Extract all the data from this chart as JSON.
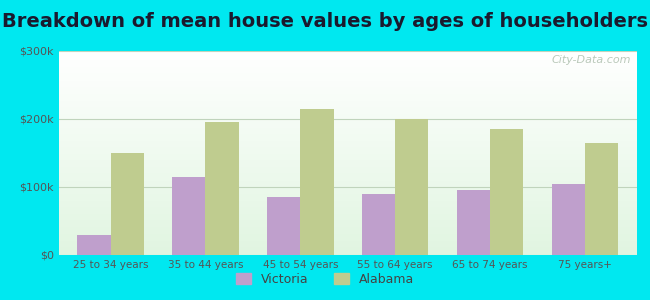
{
  "title": "Breakdown of mean house values by ages of householders",
  "categories": [
    "25 to 34 years",
    "35 to 44 years",
    "45 to 54 years",
    "55 to 64 years",
    "65 to 74 years",
    "75 years+"
  ],
  "victoria_values": [
    30000,
    115000,
    85000,
    90000,
    95000,
    105000
  ],
  "alabama_values": [
    150000,
    195000,
    215000,
    200000,
    185000,
    165000
  ],
  "victoria_color": "#bf9fcc",
  "alabama_color": "#bfcc8f",
  "ylim": [
    0,
    300000
  ],
  "yticks": [
    0,
    100000,
    200000,
    300000
  ],
  "ytick_labels": [
    "$0",
    "$100k",
    "$200k",
    "$300k"
  ],
  "background_outer": "#00e8f0",
  "legend_victoria": "Victoria",
  "legend_alabama": "Alabama",
  "title_fontsize": 14,
  "bar_width": 0.35,
  "grid_color": "#c0d4bc",
  "watermark": "City-Data.com"
}
